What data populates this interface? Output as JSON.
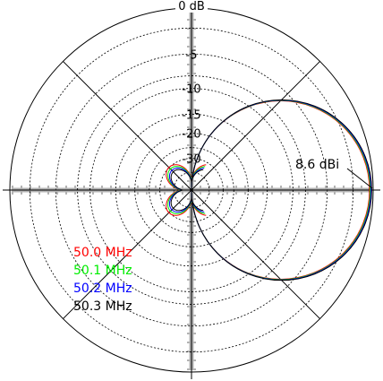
{
  "chart_data": {
    "type": "polar",
    "scale": "dB",
    "ring_labels": [
      "0 dB",
      "-5",
      "-10",
      "-15",
      "-20",
      "-30"
    ],
    "ring_values_db": [
      0,
      -5,
      -10,
      -15,
      -20,
      -30
    ],
    "grid": true,
    "peak_annotation": "8.6 dBi",
    "peak_gain_dbi": 8.6,
    "peak_direction_deg": 0,
    "legend_position": "left",
    "series": [
      {
        "name": "50.0 MHz",
        "color": "#ff0000",
        "pattern": "cardioid",
        "front_gain_rel_db": 0,
        "back_lobe_rel_db": -28.0,
        "side_null_rel_db": -30
      },
      {
        "name": "50.1 MHz",
        "color": "#00ee00",
        "pattern": "cardioid",
        "front_gain_rel_db": 0,
        "back_lobe_rel_db": -28.5,
        "side_null_rel_db": -30
      },
      {
        "name": "50.2 MHz",
        "color": "#0000ff",
        "pattern": "cardioid",
        "front_gain_rel_db": 0,
        "back_lobe_rel_db": -29.0,
        "side_null_rel_db": -30
      },
      {
        "name": "50.3 MHz",
        "color": "#000000",
        "pattern": "cardioid",
        "front_gain_rel_db": 0,
        "back_lobe_rel_db": -29.5,
        "side_null_rel_db": -30
      }
    ]
  }
}
